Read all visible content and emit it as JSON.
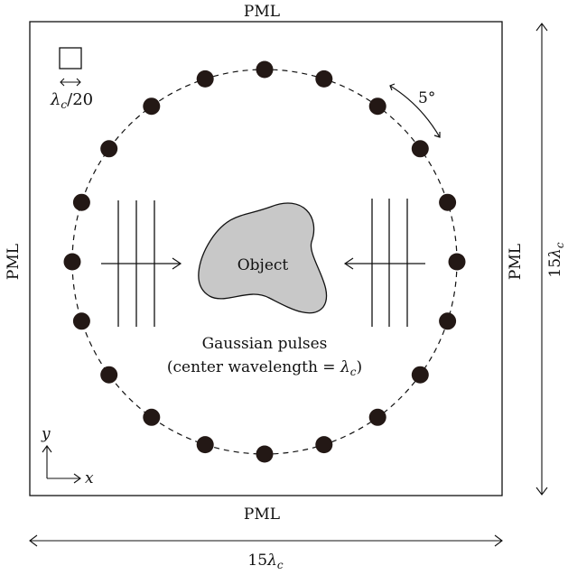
{
  "labels": {
    "pml_top": "PML",
    "pml_bottom": "PML",
    "pml_left": "PML",
    "pml_right": "PML",
    "object": "Object",
    "pulses_line1": "Gaussian pulses",
    "pulses_line2_prefix": "(center wavelength = ",
    "pulses_line2_suffix": ")",
    "angle": "5°",
    "cell_prefix": "/20",
    "dim_prefix": "15",
    "lambda": "λ",
    "lambda_sub": "c",
    "axis_x": "x",
    "axis_y": "y"
  },
  "colors": {
    "antenna": "#231815",
    "object_fill": "#c8c8c8",
    "stroke": "#111111"
  },
  "antenna_count": 20
}
